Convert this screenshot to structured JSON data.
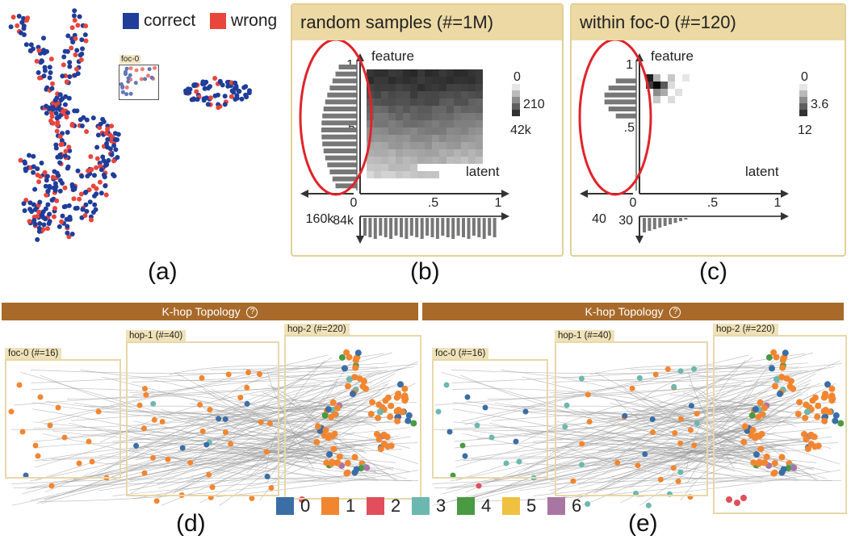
{
  "panel_a": {
    "legend": [
      {
        "label": "correct",
        "color": "#1f3d99"
      },
      {
        "label": "wrong",
        "color": "#e8453c"
      }
    ],
    "focus_label": "foc-0",
    "caption": "(a)"
  },
  "panel_b": {
    "title": "random samples (#=1M)",
    "feature_label": "feature",
    "latent_label": "latent",
    "y_ticks": [
      "1",
      ".5"
    ],
    "x_ticks": [
      "0",
      ".5",
      "1"
    ],
    "colorbar": [
      "0",
      "210",
      "42k"
    ],
    "left_count": "160k",
    "bottom_count": "84k",
    "caption": "(b)"
  },
  "panel_c": {
    "title": "within foc-0 (#=120)",
    "feature_label": "feature",
    "latent_label": "latent",
    "y_ticks": [
      "1",
      ".5"
    ],
    "x_ticks": [
      "0",
      ".5",
      "1"
    ],
    "colorbar": [
      "0",
      "3.6",
      "12"
    ],
    "left_count": "40",
    "bottom_count": "30",
    "caption": "(c)"
  },
  "panel_d": {
    "title": "K-hop Topology",
    "help_icon": "?",
    "boxes": [
      "foc-0 (#=16)",
      "hop-1 (#=40)",
      "hop-2 (#=220)"
    ],
    "caption": "(d)"
  },
  "panel_e": {
    "title": "K-hop Topology",
    "help_icon": "?",
    "boxes": [
      "foc-0 (#=16)",
      "hop-1 (#=40)",
      "hop-2 (#=220)"
    ],
    "caption": "(e)"
  },
  "class_legend": [
    {
      "label": "0",
      "color": "#3a6ea5"
    },
    {
      "label": "1",
      "color": "#f28630"
    },
    {
      "label": "2",
      "color": "#e04f5b"
    },
    {
      "label": "3",
      "color": "#6cb8b0"
    },
    {
      "label": "4",
      "color": "#4a9a44"
    },
    {
      "label": "5",
      "color": "#f0c040"
    },
    {
      "label": "6",
      "color": "#a976a4"
    }
  ]
}
